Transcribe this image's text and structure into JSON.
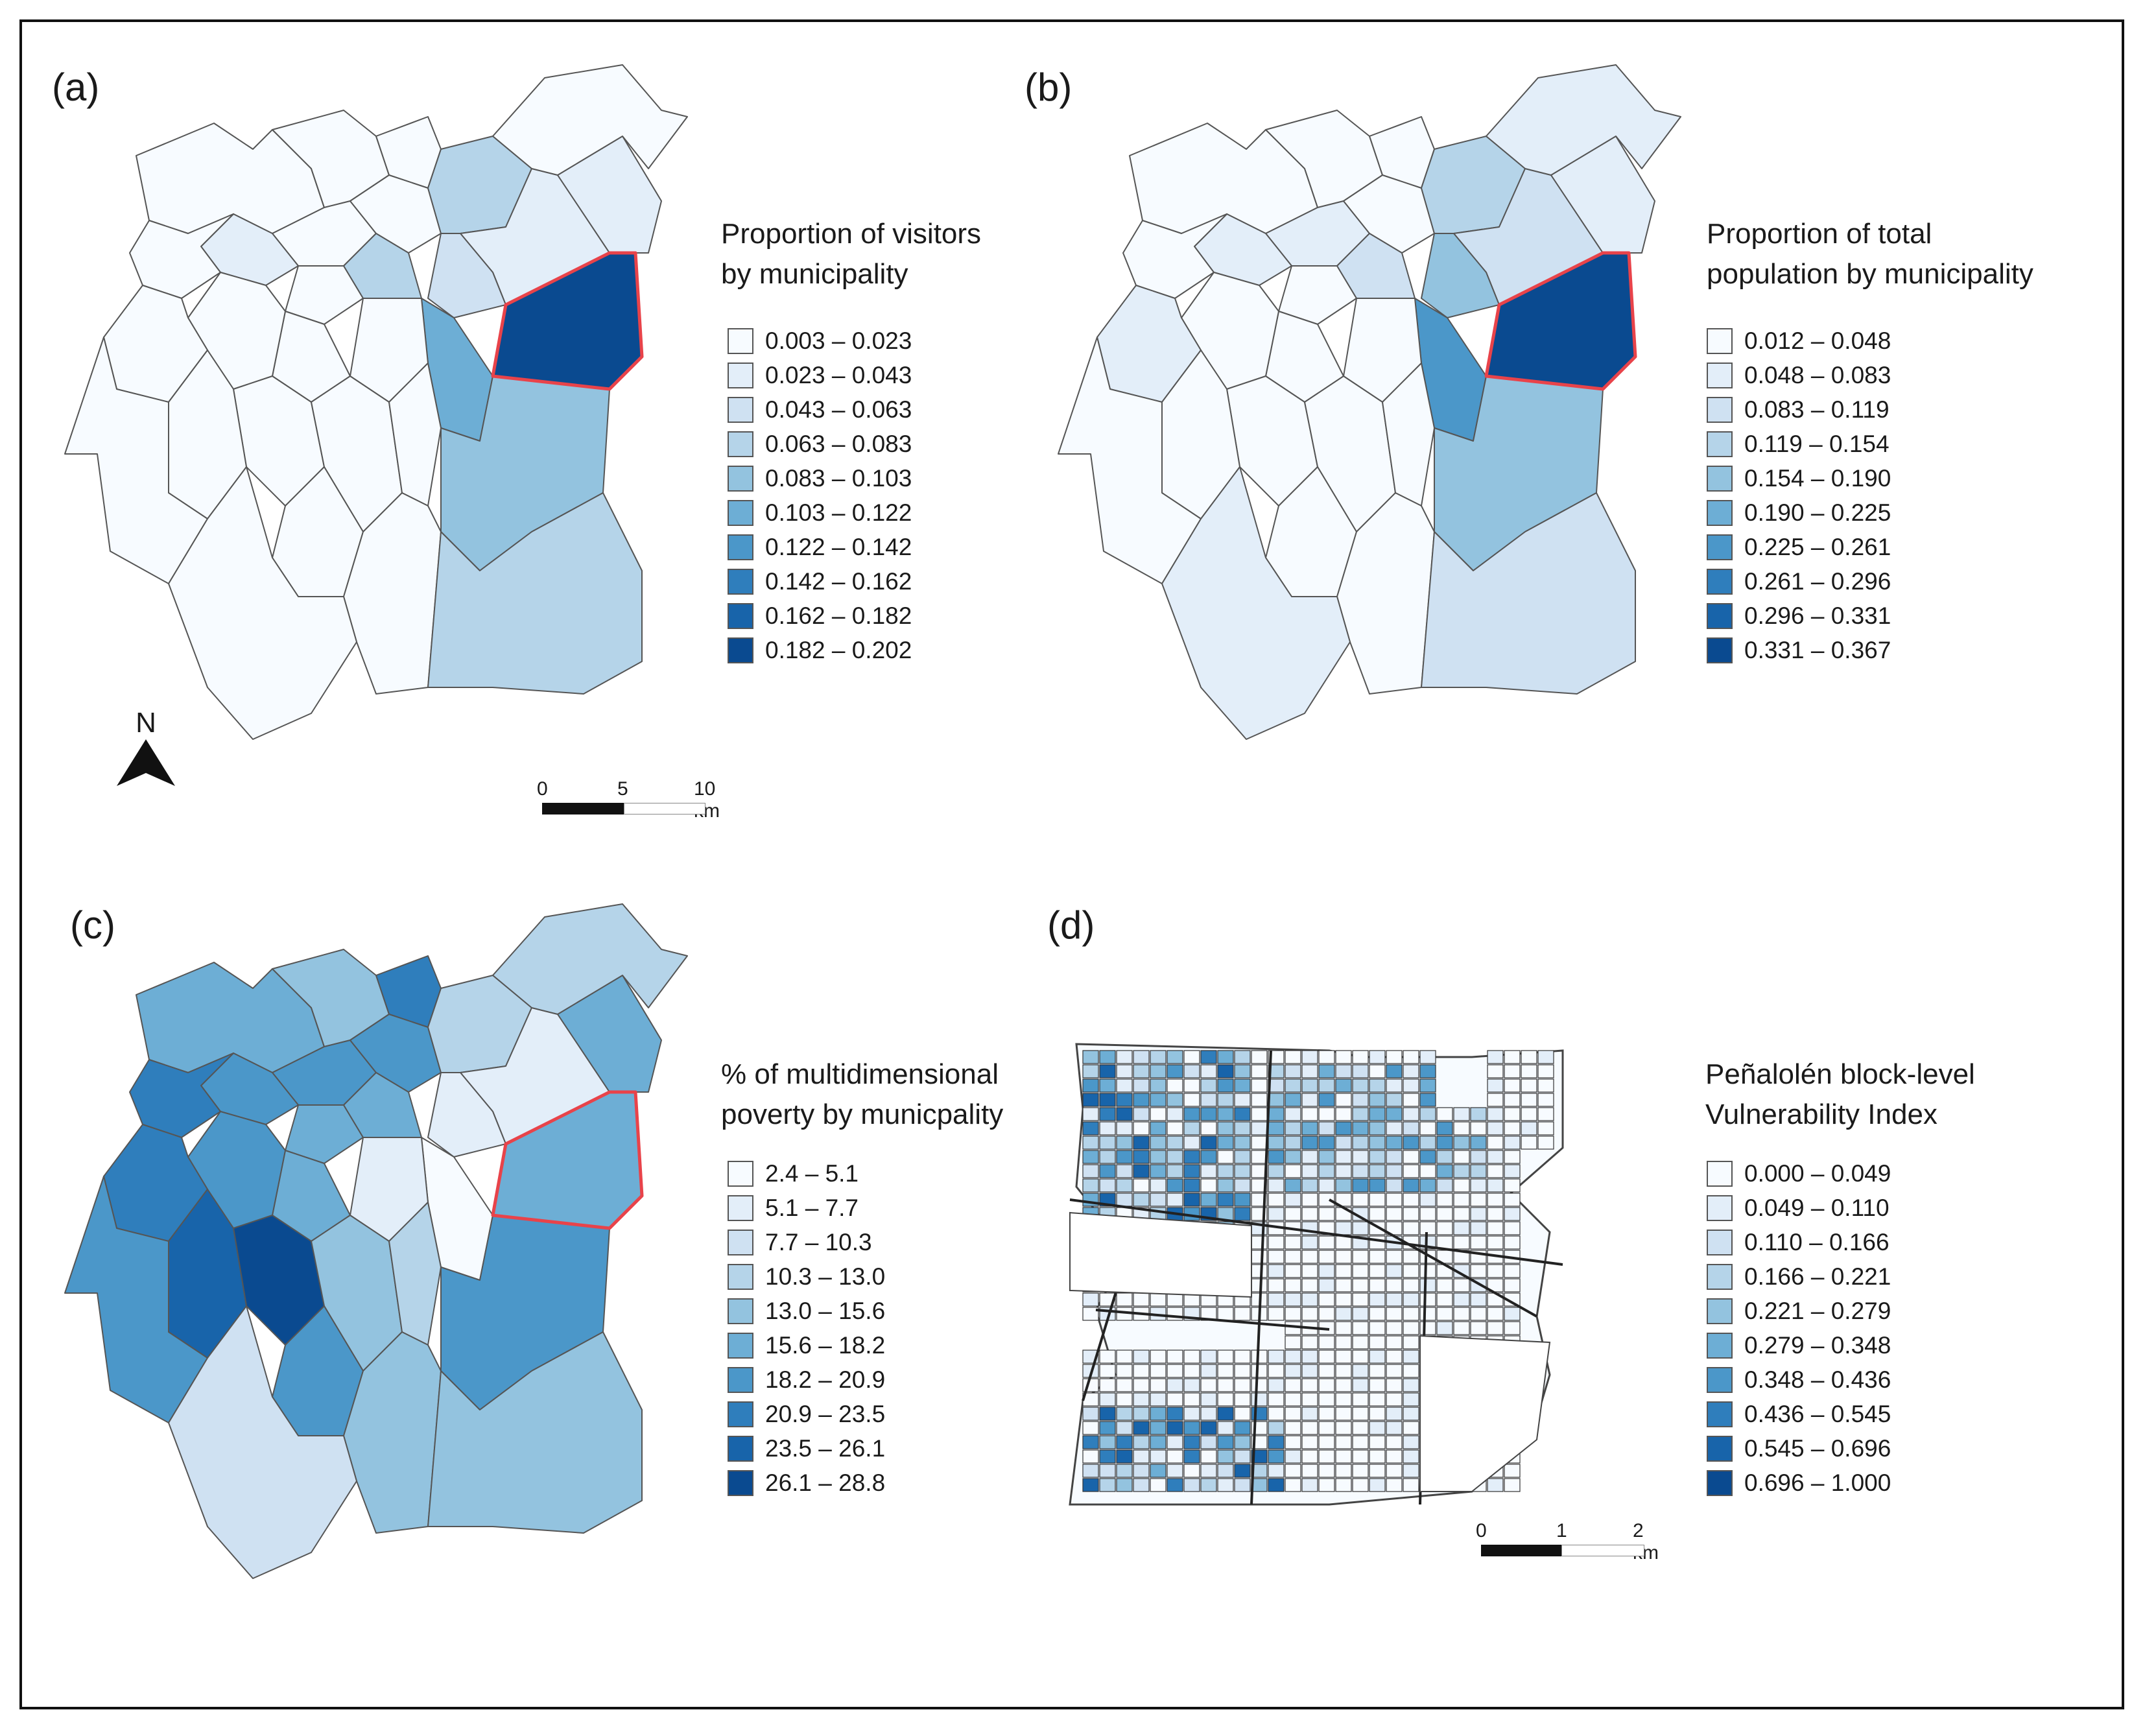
{
  "panels": [
    {
      "label": "(a)",
      "legend_title": "Proportion of visitors\nby municipality",
      "classes": [
        "0.003 – 0.023",
        "0.023 – 0.043",
        "0.043 – 0.063",
        "0.063 – 0.083",
        "0.083 – 0.103",
        "0.103 – 0.122",
        "0.122 – 0.142",
        "0.142 – 0.162",
        "0.162 – 0.182",
        "0.182 – 0.202"
      ]
    },
    {
      "label": "(b)",
      "legend_title": "Proportion of total\npopulation by municipality",
      "classes": [
        "0.012 – 0.048",
        "0.048 – 0.083",
        "0.083 – 0.119",
        "0.119 – 0.154",
        "0.154 – 0.190",
        "0.190 – 0.225",
        "0.225 – 0.261",
        "0.261 – 0.296",
        "0.296 – 0.331",
        "0.331 – 0.367"
      ]
    },
    {
      "label": "(c)",
      "legend_title": "% of multidimensional\npoverty by municpality",
      "classes": [
        "2.4 – 5.1",
        "5.1 – 7.7",
        "7.7 – 10.3",
        "10.3 – 13.0",
        "13.0 – 15.6",
        "15.6 – 18.2",
        "18.2 – 20.9",
        "20.9 – 23.5",
        "23.5 – 26.1",
        "26.1 – 28.8"
      ]
    },
    {
      "label": "(d)",
      "legend_title": "Peñalolén block-level\nVulnerability Index",
      "classes": [
        "0.000 – 0.049",
        "0.049 – 0.110",
        "0.110 – 0.166",
        "0.166 – 0.221",
        "0.221 – 0.279",
        "0.279 – 0.348",
        "0.348 – 0.436",
        "0.436 – 0.545",
        "0.545 – 0.696",
        "0.696 – 1.000"
      ]
    }
  ],
  "palette": [
    "#f7fbff",
    "#e3eef9",
    "#cfe1f2",
    "#b5d4e9",
    "#93c3df",
    "#6daed5",
    "#4b97c9",
    "#2f7ebc",
    "#1864aa",
    "#0a4a90"
  ],
  "highlight_color": "#e8434a",
  "scalebar_a": {
    "ticks": [
      "0",
      "5",
      "10 km"
    ]
  },
  "scalebar_d": {
    "ticks": [
      "0",
      "1",
      "2 km"
    ]
  },
  "north_arrow": {
    "label": "N",
    "icon": "north-arrow-icon"
  },
  "map_a_fill": [
    0,
    0,
    0,
    1,
    0,
    0,
    0,
    0,
    3,
    3,
    9,
    1,
    2,
    5,
    0,
    0,
    0,
    0,
    0,
    0,
    0,
    0,
    0,
    0,
    1,
    4,
    0,
    3,
    0,
    0
  ],
  "map_b_fill": [
    0,
    0,
    1,
    1,
    0,
    0,
    0,
    0,
    2,
    3,
    9,
    2,
    4,
    6,
    0,
    0,
    0,
    1,
    0,
    0,
    0,
    0,
    0,
    0,
    1,
    4,
    0,
    2,
    1,
    1
  ],
  "map_c_fill": [
    5,
    4,
    6,
    6,
    7,
    7,
    6,
    5,
    5,
    3,
    5,
    1,
    1,
    0,
    1,
    5,
    6,
    7,
    9,
    4,
    3,
    6,
    8,
    6,
    5,
    6,
    4,
    4,
    2,
    3
  ]
}
